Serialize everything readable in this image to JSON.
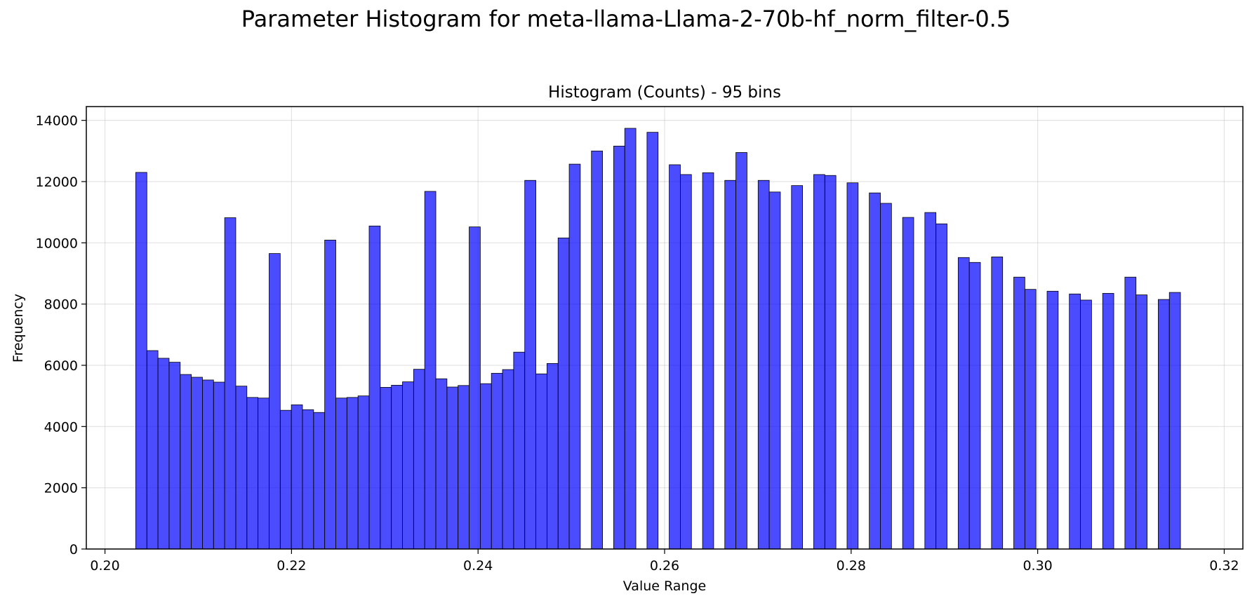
{
  "figure": {
    "suptitle": "Parameter Histogram for meta-llama-Llama-2-70b-hf_norm_filter-0.5"
  },
  "chart_data": {
    "type": "bar",
    "title": "Histogram (Counts) - 95 bins",
    "xlabel": "Value Range",
    "ylabel": "Frequency",
    "xlim": [
      0.198,
      0.322
    ],
    "ylim": [
      0,
      14450
    ],
    "xticks": [
      0.2,
      0.22,
      0.24,
      0.26,
      0.28,
      0.3,
      0.32
    ],
    "xtick_labels": [
      "0.20",
      "0.22",
      "0.24",
      "0.26",
      "0.28",
      "0.30",
      "0.32"
    ],
    "yticks": [
      0,
      2000,
      4000,
      6000,
      8000,
      10000,
      12000,
      14000
    ],
    "ytick_labels": [
      "0",
      "2000",
      "4000",
      "6000",
      "8000",
      "10000",
      "12000",
      "14000"
    ],
    "grid": true,
    "bar_color": "#0000ff",
    "bar_alpha": 0.7,
    "edge_color": "#000000",
    "bin_start": 0.2033,
    "bin_end": 0.3165,
    "bins": 95,
    "values": [
      12300,
      6480,
      6230,
      6100,
      5700,
      5610,
      5520,
      5450,
      10820,
      5320,
      4950,
      4930,
      9650,
      4530,
      4710,
      4550,
      4460,
      10090,
      4930,
      4950,
      5000,
      10550,
      5280,
      5350,
      5460,
      5870,
      11680,
      5560,
      5290,
      5340,
      10520,
      5400,
      5740,
      5860,
      6430,
      12040,
      5720,
      6060,
      10160,
      12570,
      0,
      13000,
      0,
      13160,
      13740,
      0,
      13610,
      0,
      12550,
      12230,
      0,
      12290,
      0,
      12040,
      12950,
      0,
      12040,
      11660,
      0,
      11870,
      0,
      12230,
      12200,
      0,
      11960,
      0,
      11630,
      11290,
      0,
      10830,
      0,
      10990,
      10620,
      0,
      9520,
      9360,
      0,
      9540,
      0,
      8880,
      8480,
      0,
      8420,
      0,
      8330,
      8130,
      0,
      8350,
      0,
      8880,
      8300,
      0,
      8150,
      8380,
      0
    ]
  }
}
